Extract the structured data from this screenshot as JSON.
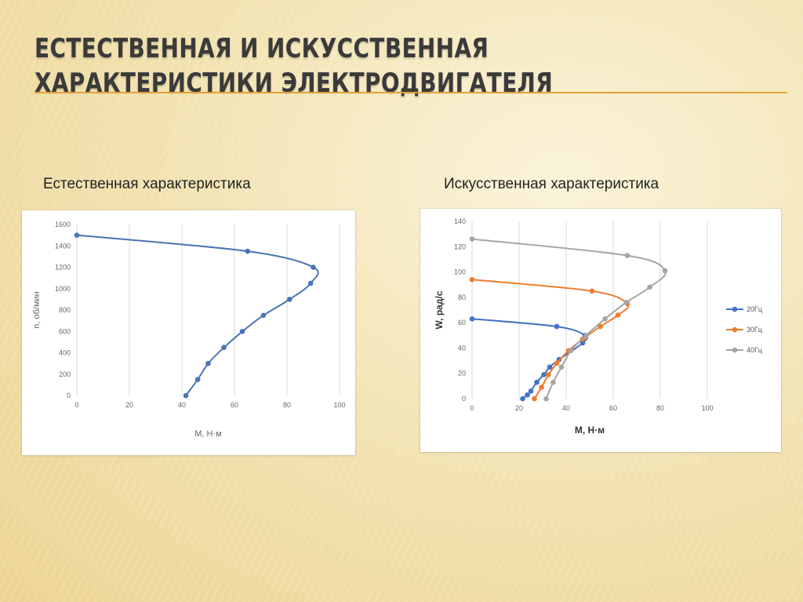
{
  "slide": {
    "title": "Естественная и искусственная характеристики электродвигателя",
    "caption_left": "Естественная характеристика",
    "caption_right": "Искусственная характеристика",
    "accent_color": "#e0a23a"
  },
  "chart_data": [
    {
      "type": "scatter",
      "title": "",
      "xlabel": "M, Н·м",
      "ylabel": "n, об/мин",
      "xlim": [
        0,
        100
      ],
      "ylim": [
        0,
        1600
      ],
      "x_ticks": [
        0,
        20,
        40,
        60,
        80,
        100
      ],
      "y_ticks": [
        0,
        200,
        400,
        600,
        800,
        1000,
        1200,
        1400,
        1600
      ],
      "grid": "vertical",
      "series": [
        {
          "name": "",
          "color": "#4a74b4",
          "x": [
            0,
            65,
            90,
            89,
            81,
            71,
            63,
            56,
            50,
            46,
            41.5
          ],
          "y": [
            1500,
            1350,
            1200,
            1050,
            900,
            750,
            600,
            450,
            300,
            150,
            0
          ]
        }
      ]
    },
    {
      "type": "scatter",
      "title": "",
      "xlabel": "M, Н·м",
      "ylabel": "W, рад/с",
      "xlim": [
        0,
        100
      ],
      "ylim": [
        0,
        140
      ],
      "x_ticks": [
        0,
        20,
        40,
        60,
        80,
        100
      ],
      "y_ticks": [
        0,
        20,
        40,
        60,
        80,
        100,
        120,
        140
      ],
      "grid": "vertical",
      "legend": "right",
      "series": [
        {
          "name": "20Гц",
          "color": "#4472c4",
          "x": [
            0,
            36,
            48,
            47,
            37,
            33,
            30.5,
            27.5,
            25,
            23.5,
            21.5
          ],
          "y": [
            63,
            57,
            50,
            44,
            31,
            25,
            19,
            13,
            6,
            3,
            0
          ]
        },
        {
          "name": "30Гц",
          "color": "#ed7d31",
          "x": [
            0,
            51,
            66,
            62,
            54.5,
            47,
            41,
            36,
            32.5,
            29.5,
            26.5
          ],
          "y": [
            94,
            85,
            75,
            66,
            57,
            47,
            38,
            28,
            19,
            9,
            0
          ]
        },
        {
          "name": "40Гц",
          "color": "#a5a5a5",
          "x": [
            0,
            66,
            82,
            75.5,
            65.5,
            56.5,
            48.5,
            42,
            38,
            34.5,
            31.5
          ],
          "y": [
            126,
            113,
            101,
            88,
            76,
            63,
            50,
            38,
            25,
            13,
            0
          ]
        }
      ]
    }
  ]
}
